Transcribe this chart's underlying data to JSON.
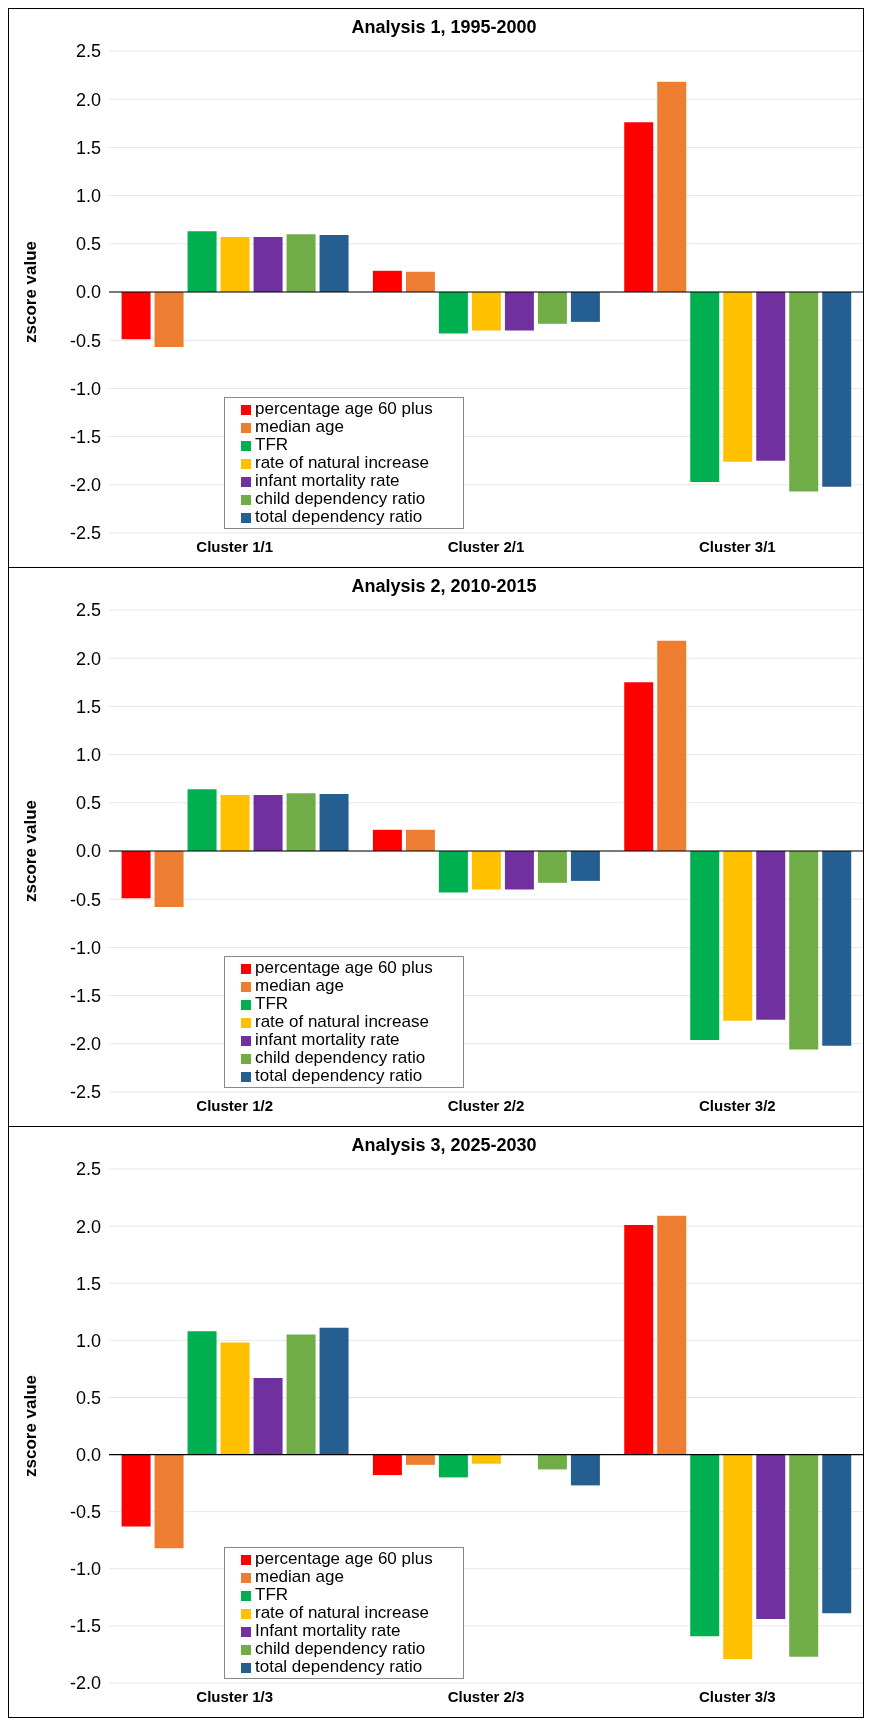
{
  "chart_data": [
    {
      "type": "bar",
      "title": "Analysis 1, 1995-2000",
      "ylabel": "zscore value",
      "categories": [
        "Cluster 1/1",
        "Cluster 2/1",
        "Cluster 3/1"
      ],
      "series": [
        {
          "name": "percentage age 60 plus",
          "color": "#ff0000",
          "values": [
            -0.49,
            0.22,
            1.76
          ]
        },
        {
          "name": "median age",
          "color": "#ed7d31",
          "values": [
            -0.57,
            0.21,
            2.18
          ]
        },
        {
          "name": "TFR",
          "color": "#00b050",
          "values": [
            0.63,
            -0.43,
            -1.97
          ]
        },
        {
          "name": "rate of natural increase",
          "color": "#ffc000",
          "values": [
            0.57,
            -0.4,
            -1.76
          ]
        },
        {
          "name": "infant mortality rate",
          "color": "#7030a0",
          "values": [
            0.57,
            -0.4,
            -1.75
          ]
        },
        {
          "name": "child dependency ratio",
          "color": "#70ad47",
          "values": [
            0.6,
            -0.33,
            -2.07
          ]
        },
        {
          "name": "total dependency ratio",
          "color": "#255e91",
          "values": [
            0.59,
            -0.31,
            -2.02
          ]
        }
      ],
      "ylim": [
        -2.5,
        2.5
      ],
      "yticks": [
        {
          "value": -2.5,
          "label": "-2.5"
        },
        {
          "value": -2,
          "label": "-2.0"
        },
        {
          "value": -1.5,
          "label": "-1.5"
        },
        {
          "value": -1,
          "label": "-1.0"
        },
        {
          "value": -0.5,
          "label": "-0.5"
        },
        {
          "value": 0,
          "label": "0.0"
        },
        {
          "value": 0.5,
          "label": "0.5"
        },
        {
          "value": 1,
          "label": "1.0"
        },
        {
          "value": 1.5,
          "label": "1.5"
        },
        {
          "value": 2,
          "label": "2.0"
        },
        {
          "value": 2.5,
          "label": "2.5"
        }
      ],
      "grid": "y",
      "legend": "bottom left"
    },
    {
      "type": "bar",
      "title": "Analysis 2, 2010-2015",
      "ylabel": "zscore value",
      "categories": [
        "Cluster 1/2",
        "Cluster 2/2",
        "Cluster 3/2"
      ],
      "series": [
        {
          "name": "percentage age 60 plus",
          "color": "#ff0000",
          "values": [
            -0.49,
            0.22,
            1.75
          ]
        },
        {
          "name": "median age",
          "color": "#ed7d31",
          "values": [
            -0.58,
            0.22,
            2.18
          ]
        },
        {
          "name": "TFR",
          "color": "#00b050",
          "values": [
            0.64,
            -0.43,
            -1.96
          ]
        },
        {
          "name": "rate of natural increase",
          "color": "#ffc000",
          "values": [
            0.58,
            -0.4,
            -1.76
          ]
        },
        {
          "name": "infant mortality rate",
          "color": "#7030a0",
          "values": [
            0.58,
            -0.4,
            -1.75
          ]
        },
        {
          "name": "child dependency ratio",
          "color": "#70ad47",
          "values": [
            0.6,
            -0.33,
            -2.06
          ]
        },
        {
          "name": "total dependency ratio",
          "color": "#255e91",
          "values": [
            0.59,
            -0.31,
            -2.02
          ]
        }
      ],
      "ylim": [
        -2.5,
        2.5
      ],
      "yticks": [
        {
          "value": -2.5,
          "label": "-2.5"
        },
        {
          "value": -2,
          "label": "-2.0"
        },
        {
          "value": -1.5,
          "label": "-1.5"
        },
        {
          "value": -1,
          "label": "-1.0"
        },
        {
          "value": -0.5,
          "label": "-0.5"
        },
        {
          "value": 0,
          "label": "0.0"
        },
        {
          "value": 0.5,
          "label": "0.5"
        },
        {
          "value": 1,
          "label": "1.0"
        },
        {
          "value": 1.5,
          "label": "1.5"
        },
        {
          "value": 2,
          "label": "2.0"
        },
        {
          "value": 2.5,
          "label": "2.5"
        }
      ],
      "grid": "y",
      "legend": "bottom left"
    },
    {
      "type": "bar",
      "title": "Analysis 3, 2025-2030",
      "ylabel": "zscore value",
      "categories": [
        "Cluster 1/3",
        "Cluster 2/3",
        "Cluster 3/3"
      ],
      "series": [
        {
          "name": "percentage age 60 plus",
          "color": "#ff0000",
          "values": [
            -0.63,
            -0.18,
            2.01
          ]
        },
        {
          "name": "median age",
          "color": "#ed7d31",
          "values": [
            -0.82,
            -0.09,
            2.09
          ]
        },
        {
          "name": "TFR",
          "color": "#00b050",
          "values": [
            1.08,
            -0.2,
            -1.59
          ]
        },
        {
          "name": "rate of natural increase",
          "color": "#ffc000",
          "values": [
            0.98,
            -0.08,
            -1.79
          ]
        },
        {
          "name": "Infant mortality rate",
          "color": "#7030a0",
          "values": [
            0.67,
            0,
            -1.44
          ]
        },
        {
          "name": "child dependency ratio",
          "color": "#70ad47",
          "values": [
            1.05,
            -0.13,
            -1.77
          ]
        },
        {
          "name": "total dependency ratio",
          "color": "#255e91",
          "values": [
            1.11,
            -0.27,
            -1.39
          ]
        }
      ],
      "ylim": [
        -2,
        2.5
      ],
      "yticks": [
        {
          "value": -2,
          "label": "-2.0"
        },
        {
          "value": -1.5,
          "label": "-1.5"
        },
        {
          "value": -1,
          "label": "-1.0"
        },
        {
          "value": -0.5,
          "label": "-0.5"
        },
        {
          "value": 0,
          "label": "0.0"
        },
        {
          "value": 0.5,
          "label": "0.5"
        },
        {
          "value": 1,
          "label": "1.0"
        },
        {
          "value": 1.5,
          "label": "1.5"
        },
        {
          "value": 2,
          "label": "2.0"
        },
        {
          "value": 2.5,
          "label": "2.5"
        }
      ],
      "grid": "y",
      "legend": "bottom left"
    }
  ]
}
